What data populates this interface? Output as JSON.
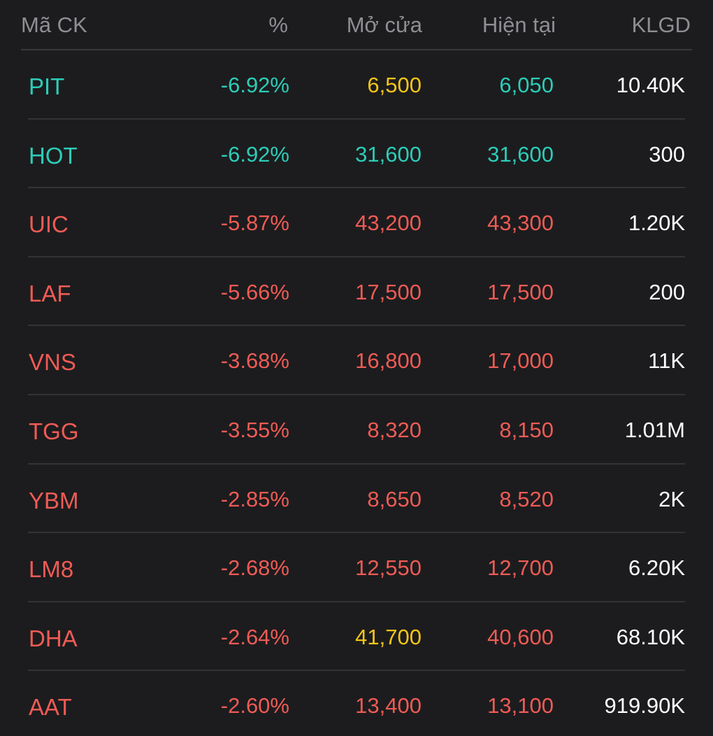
{
  "colors": {
    "background": "#1c1c1e",
    "header_text": "#8e8e93",
    "divider": "#333336",
    "down": "#ef5b55",
    "floor": "#2ccdb8",
    "reference": "#f5c518",
    "volume": "#ffffff"
  },
  "header": {
    "symbol": "Mã CK",
    "percent": "%",
    "open": "Mở cửa",
    "current": "Hiện tại",
    "volume": "KLGD"
  },
  "rows": [
    {
      "symbol": "PIT",
      "percent": "-6.92%",
      "open": "6,500",
      "current": "6,050",
      "volume": "10.40K",
      "symbol_color": "floor",
      "percent_color": "floor",
      "open_color": "reference",
      "current_color": "floor"
    },
    {
      "symbol": "HOT",
      "percent": "-6.92%",
      "open": "31,600",
      "current": "31,600",
      "volume": "300",
      "symbol_color": "floor",
      "percent_color": "floor",
      "open_color": "floor",
      "current_color": "floor"
    },
    {
      "symbol": "UIC",
      "percent": "-5.87%",
      "open": "43,200",
      "current": "43,300",
      "volume": "1.20K",
      "symbol_color": "down",
      "percent_color": "down",
      "open_color": "down",
      "current_color": "down"
    },
    {
      "symbol": "LAF",
      "percent": "-5.66%",
      "open": "17,500",
      "current": "17,500",
      "volume": "200",
      "symbol_color": "down",
      "percent_color": "down",
      "open_color": "down",
      "current_color": "down"
    },
    {
      "symbol": "VNS",
      "percent": "-3.68%",
      "open": "16,800",
      "current": "17,000",
      "volume": "11K",
      "symbol_color": "down",
      "percent_color": "down",
      "open_color": "down",
      "current_color": "down"
    },
    {
      "symbol": "TGG",
      "percent": "-3.55%",
      "open": "8,320",
      "current": "8,150",
      "volume": "1.01M",
      "symbol_color": "down",
      "percent_color": "down",
      "open_color": "down",
      "current_color": "down"
    },
    {
      "symbol": "YBM",
      "percent": "-2.85%",
      "open": "8,650",
      "current": "8,520",
      "volume": "2K",
      "symbol_color": "down",
      "percent_color": "down",
      "open_color": "down",
      "current_color": "down"
    },
    {
      "symbol": "LM8",
      "percent": "-2.68%",
      "open": "12,550",
      "current": "12,700",
      "volume": "6.20K",
      "symbol_color": "down",
      "percent_color": "down",
      "open_color": "down",
      "current_color": "down"
    },
    {
      "symbol": "DHA",
      "percent": "-2.64%",
      "open": "41,700",
      "current": "40,600",
      "volume": "68.10K",
      "symbol_color": "down",
      "percent_color": "down",
      "open_color": "reference",
      "current_color": "down"
    },
    {
      "symbol": "AAT",
      "percent": "-2.60%",
      "open": "13,400",
      "current": "13,100",
      "volume": "919.90K",
      "symbol_color": "down",
      "percent_color": "down",
      "open_color": "down",
      "current_color": "down"
    }
  ]
}
